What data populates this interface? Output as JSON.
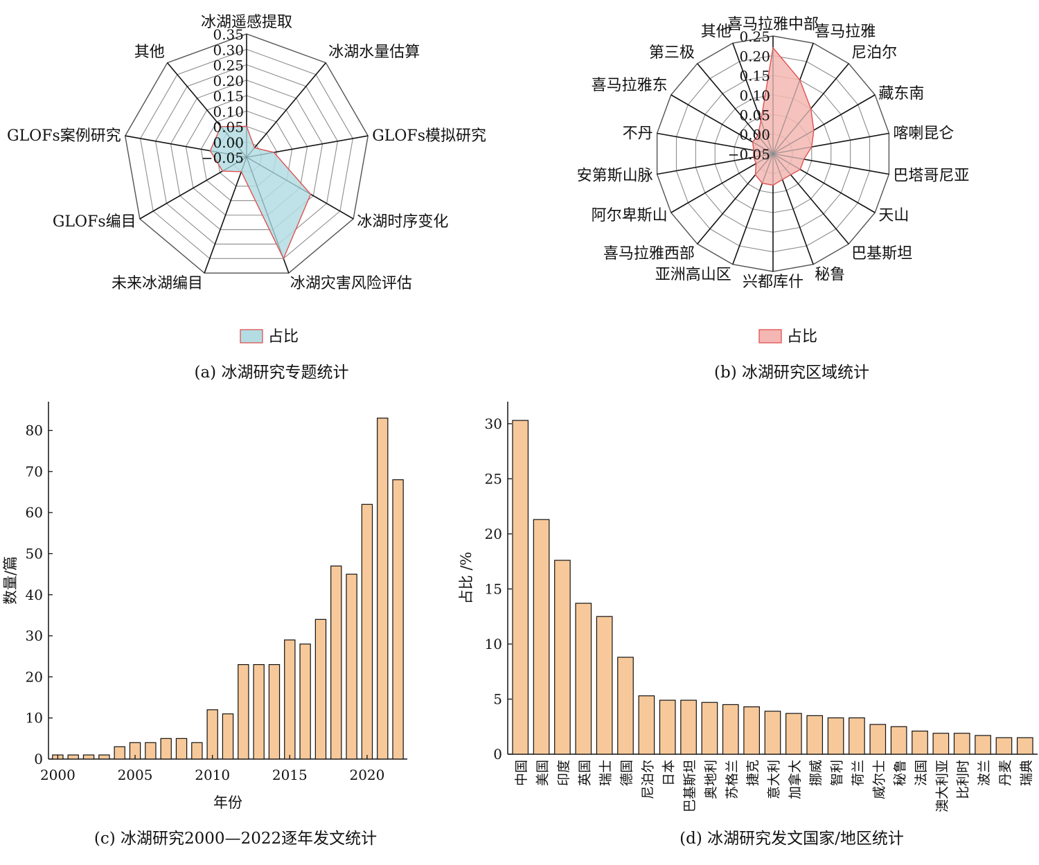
{
  "charts": [
    {
      "type": "radar",
      "caption": "(a) 冰湖研究专题统计",
      "axes": [
        "冰湖遥感提取",
        "冰湖水量估算",
        "GLOFs模拟研究",
        "冰湖时序变化",
        "冰湖灾害风险评估",
        "未来冰湖编目",
        "GLOFs编目",
        "GLOFs案例研究",
        "其他"
      ],
      "tick_labels": [
        "0.35",
        "0.30",
        "0.25",
        "0.20",
        "0.15",
        "0.10",
        "0.05",
        "0.00",
        "−0.05"
      ],
      "rlim": [
        -0.05,
        0.35
      ],
      "rings": [
        -0.05,
        0.0,
        0.05,
        0.1,
        0.15,
        0.2,
        0.25,
        0.3,
        0.35
      ],
      "series": [
        {
          "name": "占比",
          "values": [
            0.05,
            -0.01,
            0.04,
            0.19,
            0.3,
            0.0,
            0.04,
            0.07,
            0.08
          ]
        }
      ],
      "legend": "占比",
      "fill_color": "#b3dde3",
      "line_color": "#e05050"
    },
    {
      "type": "radar",
      "caption": "(b) 冰湖研究区域统计",
      "axes": [
        "喜马拉雅中部",
        "喜马拉雅",
        "尼泊尔",
        "藏东南",
        "喀喇昆仑",
        "巴塔哥尼亚",
        "天山",
        "巴基斯坦",
        "秘鲁",
        "兴都库什",
        "亚洲高山区",
        "喜马拉雅西部",
        "阿尔卑斯山",
        "安第斯山脉",
        "不丹",
        "喜马拉雅东",
        "第三极",
        "其他"
      ],
      "tick_labels": [
        "0.25",
        "0.20",
        "0.15",
        "0.10",
        "0.05",
        "0.00",
        "−0.05"
      ],
      "rlim": [
        -0.05,
        0.25
      ],
      "rings": [
        -0.05,
        0.0,
        0.05,
        0.1,
        0.15,
        0.2,
        0.25
      ],
      "series": [
        {
          "name": "占比",
          "values": [
            0.22,
            0.15,
            0.1,
            0.07,
            0.05,
            0.03,
            0.03,
            0.02,
            0.02,
            0.03,
            0.03,
            0.02,
            0.0,
            0.0,
            0.0,
            0.01,
            0.01,
            0.04
          ]
        }
      ],
      "legend": "占比",
      "fill_color": "#f4b7b3",
      "line_color": "#e05050"
    },
    {
      "type": "bar",
      "caption": "(c) 冰湖研究2000—2022逐年发文统计",
      "xlabel": "年份",
      "ylabel": "数量/篇",
      "categories": [
        "2000",
        "2001",
        "2002",
        "2003",
        "2004",
        "2005",
        "2006",
        "2007",
        "2008",
        "2009",
        "2010",
        "2011",
        "2012",
        "2013",
        "2014",
        "2015",
        "2016",
        "2017",
        "2018",
        "2019",
        "2020",
        "2021",
        "2022"
      ],
      "values": [
        1,
        1,
        1,
        1,
        3,
        4,
        4,
        5,
        5,
        4,
        12,
        11,
        23,
        23,
        23,
        29,
        28,
        34,
        47,
        45,
        62,
        83,
        68
      ],
      "x_ticks": [
        "2000",
        "2005",
        "2010",
        "2015",
        "2020"
      ],
      "ylim": [
        0,
        87
      ],
      "y_ticks": [
        "0",
        "10",
        "20",
        "30",
        "40",
        "50",
        "60",
        "70",
        "80"
      ],
      "bar_color": "#f7c99a"
    },
    {
      "type": "bar",
      "caption": "(d) 冰湖研究发文国家/地区统计",
      "ylabel": "占比 /%",
      "categories": [
        "中国",
        "美国",
        "印度",
        "英国",
        "瑞士",
        "德国",
        "尼泊尔",
        "日本",
        "巴基斯坦",
        "奥地利",
        "苏格兰",
        "捷克",
        "意大利",
        "加拿大",
        "挪威",
        "智利",
        "荷兰",
        "威尔士",
        "秘鲁",
        "法国",
        "澳大利亚",
        "比利时",
        "波兰",
        "丹麦",
        "瑞典"
      ],
      "values": [
        30.3,
        21.3,
        17.6,
        13.7,
        12.5,
        8.8,
        5.3,
        4.9,
        4.9,
        4.7,
        4.5,
        4.3,
        3.9,
        3.7,
        3.5,
        3.3,
        3.3,
        2.7,
        2.5,
        2.1,
        1.9,
        1.9,
        1.7,
        1.5,
        1.5
      ],
      "ylim": [
        0,
        32
      ],
      "y_ticks": [
        "0",
        "5",
        "10",
        "15",
        "20",
        "25",
        "30"
      ],
      "bar_color": "#f7c99a"
    }
  ]
}
